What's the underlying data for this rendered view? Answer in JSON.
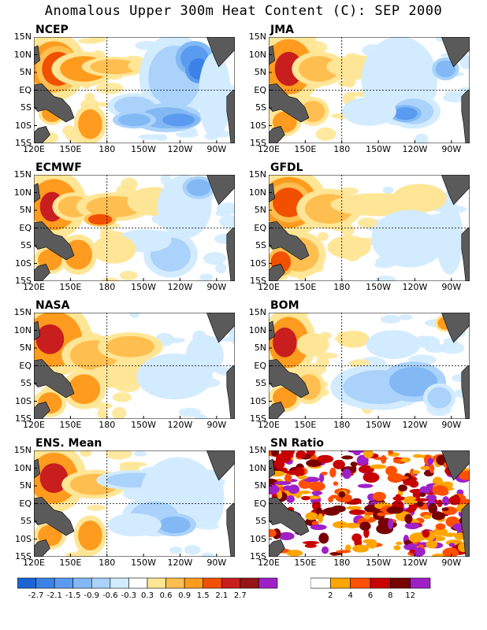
{
  "title": "Anomalous Upper 300m Heat Content (C): SEP 2000",
  "chart_data": [
    {
      "type": "heatmap",
      "panel": "NCEP",
      "x_ticks": [
        "120E",
        "150E",
        "180",
        "150W",
        "120W",
        "90W"
      ],
      "y_ticks": [
        "15N",
        "10N",
        "5N",
        "EQ",
        "5S",
        "10S",
        "15S"
      ]
    },
    {
      "type": "heatmap",
      "panel": "JMA",
      "x_ticks": [
        "120E",
        "150E",
        "180",
        "150W",
        "120W",
        "90W"
      ],
      "y_ticks": [
        "15N",
        "10N",
        "5N",
        "EQ",
        "5S",
        "10S",
        "15S"
      ]
    },
    {
      "type": "heatmap",
      "panel": "ECMWF",
      "x_ticks": [
        "120E",
        "150E",
        "180",
        "150W",
        "120W",
        "90W"
      ],
      "y_ticks": [
        "15N",
        "10N",
        "5N",
        "EQ",
        "5S",
        "10S",
        "15S"
      ]
    },
    {
      "type": "heatmap",
      "panel": "GFDL",
      "x_ticks": [
        "120E",
        "150E",
        "180",
        "150W",
        "120W",
        "90W"
      ],
      "y_ticks": [
        "15N",
        "10N",
        "5N",
        "EQ",
        "5S",
        "10S",
        "15S"
      ]
    },
    {
      "type": "heatmap",
      "panel": "NASA",
      "x_ticks": [
        "120E",
        "150E",
        "180",
        "150W",
        "120W",
        "90W"
      ],
      "y_ticks": [
        "15N",
        "10N",
        "5N",
        "EQ",
        "5S",
        "10S",
        "15S"
      ]
    },
    {
      "type": "heatmap",
      "panel": "BOM",
      "x_ticks": [
        "120E",
        "150E",
        "180",
        "150W",
        "120W",
        "90W"
      ],
      "y_ticks": [
        "15N",
        "10N",
        "5N",
        "EQ",
        "5S",
        "10S",
        "15S"
      ]
    },
    {
      "type": "heatmap",
      "panel": "ENS. Mean",
      "x_ticks": [
        "120E",
        "150E",
        "180",
        "150W",
        "120W",
        "90W"
      ],
      "y_ticks": [
        "15N",
        "10N",
        "5N",
        "EQ",
        "5S",
        "10S",
        "15S"
      ]
    },
    {
      "type": "heatmap",
      "panel": "SN Ratio",
      "x_ticks": [
        "120E",
        "150E",
        "180",
        "150W",
        "120W",
        "90W"
      ],
      "y_ticks": [
        "15N",
        "10N",
        "5N",
        "EQ",
        "5S",
        "10S",
        "15S"
      ]
    }
  ],
  "panels": [
    "NCEP",
    "JMA",
    "ECMWF",
    "GFDL",
    "NASA",
    "BOM",
    "ENS. Mean",
    "SN Ratio"
  ],
  "x_ticks": [
    "120E",
    "150E",
    "180",
    "150W",
    "120W",
    "90W"
  ],
  "y_ticks": [
    "15N",
    "10N",
    "5N",
    "EQ",
    "5S",
    "10S",
    "15S"
  ],
  "anomaly_colorbar": {
    "labels": [
      "-2.7",
      "-2.1",
      "-1.5",
      "-0.9",
      "-0.6",
      "-0.3",
      "0.3",
      "0.6",
      "0.9",
      "1.5",
      "2.1",
      "2.7"
    ],
    "colors": [
      "#1e64d2",
      "#3c82e6",
      "#5a9bf0",
      "#82b9f5",
      "#aad2fa",
      "#d2ebff",
      "#ffffff",
      "#ffe696",
      "#ffbe50",
      "#ff9b1e",
      "#f05000",
      "#c81e1e",
      "#961414",
      "#a020c8"
    ]
  },
  "sn_colorbar": {
    "labels": [
      "2",
      "4",
      "6",
      "8",
      "12"
    ],
    "colors": [
      "#ffffff",
      "#ffa500",
      "#ff5000",
      "#c80000",
      "#780000",
      "#a020c8"
    ]
  },
  "land_color": "#5a5a5a"
}
